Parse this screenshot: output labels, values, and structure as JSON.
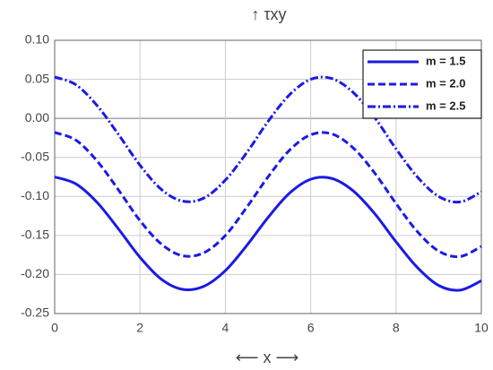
{
  "chart_data": {
    "type": "line",
    "title": "↑ τxy",
    "x_label": "⟵ x ⟶",
    "x": [
      0,
      0.5,
      1,
      1.5,
      2,
      2.5,
      3,
      3.5,
      4,
      4.5,
      5,
      5.5,
      6,
      6.5,
      7,
      7.5,
      8,
      8.5,
      9,
      9.5,
      10
    ],
    "series": [
      {
        "name": "m = 1.5",
        "color": "#1a1ae6",
        "style": "solid",
        "values": [
          -0.075,
          -0.084,
          -0.108,
          -0.142,
          -0.178,
          -0.206,
          -0.219,
          -0.215,
          -0.195,
          -0.163,
          -0.127,
          -0.096,
          -0.078,
          -0.077,
          -0.093,
          -0.122,
          -0.158,
          -0.191,
          -0.214,
          -0.22,
          -0.208
        ]
      },
      {
        "name": "m = 2.0",
        "color": "#1a1ae6",
        "style": "dashed",
        "values": [
          -0.018,
          -0.028,
          -0.055,
          -0.092,
          -0.131,
          -0.161,
          -0.176,
          -0.172,
          -0.15,
          -0.114,
          -0.075,
          -0.041,
          -0.021,
          -0.02,
          -0.038,
          -0.07,
          -0.109,
          -0.145,
          -0.17,
          -0.177,
          -0.164
        ]
      },
      {
        "name": "m = 2.5",
        "color": "#1a1ae6",
        "style": "dashdot",
        "values": [
          0.053,
          0.043,
          0.016,
          -0.021,
          -0.06,
          -0.091,
          -0.106,
          -0.102,
          -0.079,
          -0.044,
          -0.004,
          0.03,
          0.05,
          0.051,
          0.033,
          0.001,
          -0.039,
          -0.075,
          -0.1,
          -0.107,
          -0.094
        ]
      }
    ],
    "xlim": [
      0,
      10
    ],
    "xticks": [
      0,
      2,
      4,
      6,
      8,
      10
    ],
    "ylim": [
      -0.25,
      0.1
    ],
    "yticks": [
      {
        "value": -0.25,
        "label": "-0.25"
      },
      {
        "value": -0.2,
        "label": "-0.20"
      },
      {
        "value": -0.15,
        "label": "-0.15"
      },
      {
        "value": -0.1,
        "label": "-0.10"
      },
      {
        "value": -0.05,
        "label": "-0.05"
      },
      {
        "value": 0,
        "label": "0.00"
      },
      {
        "value": 0.05,
        "label": "0.05"
      },
      {
        "value": 0.1,
        "label": "0.10"
      }
    ],
    "grid": true,
    "legend_position": "top-right"
  }
}
